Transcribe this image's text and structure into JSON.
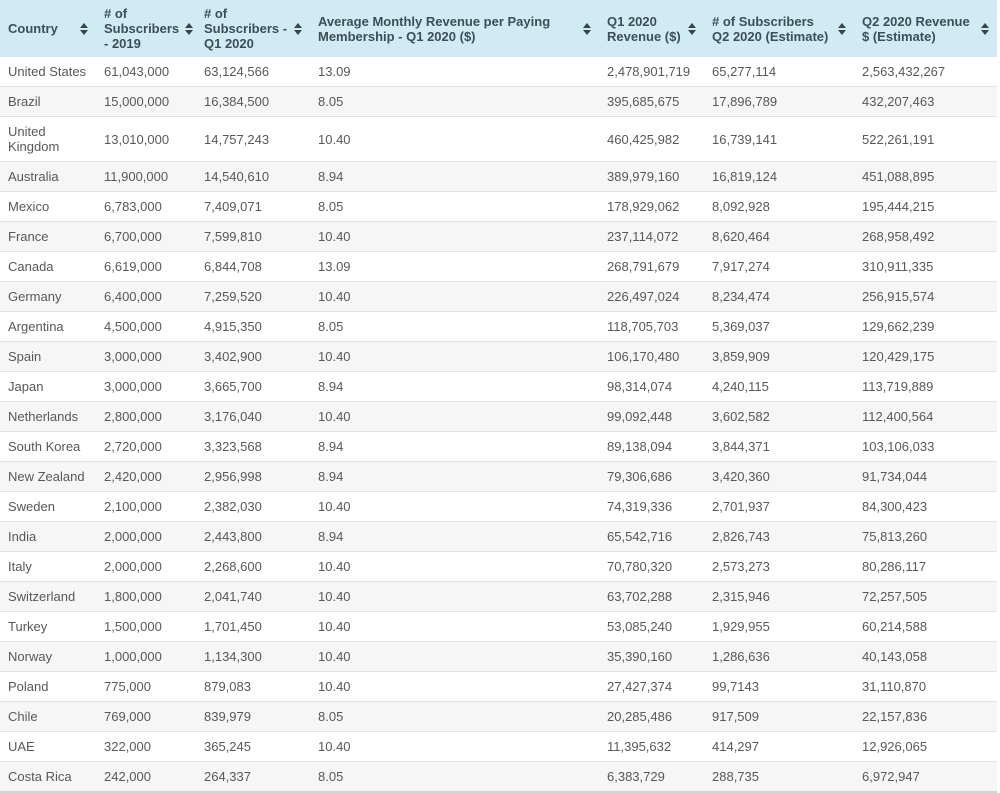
{
  "colors": {
    "page_bg": "#ffffff",
    "header_bg": "#d1ebf5",
    "header_text": "#3c4e57",
    "body_text": "#585858",
    "stripe_bg": "#f6f6f6",
    "row_border": "#e2e2e2",
    "table_bottom_border": "#d4d4d4",
    "sort_icon": "#37444c"
  },
  "table": {
    "sort_icon_name": "sort-up-down-icon",
    "columns": [
      {
        "key": "country",
        "label": "Country"
      },
      {
        "key": "subs-2019",
        "label": "# of Subscribers - 2019"
      },
      {
        "key": "subs-q1-2020",
        "label": "# of Subscribers - Q1 2020"
      },
      {
        "key": "avg-monthly-revenue-q1-2020",
        "label": "Average Monthly Revenue per Paying Membership - Q1 2020 ($)"
      },
      {
        "key": "q1-2020-revenue",
        "label": "Q1 2020 Revenue ($)"
      },
      {
        "key": "subs-q2-2020-estimate",
        "label": "# of Subscribers Q2 2020 (Estimate)"
      },
      {
        "key": "q2-2020-revenue-estimate",
        "label": "Q2 2020 Revenue $ (Estimate)"
      }
    ],
    "rows": [
      [
        "United States",
        "61,043,000",
        "63,124,566",
        "13.09",
        "2,478,901,719",
        "65,277,114",
        "2,563,432,267"
      ],
      [
        "Brazil",
        "15,000,000",
        "16,384,500",
        "8.05",
        "395,685,675",
        "17,896,789",
        "432,207,463"
      ],
      [
        "United Kingdom",
        "13,010,000",
        "14,757,243",
        "10.40",
        "460,425,982",
        "16,739,141",
        "522,261,191"
      ],
      [
        "Australia",
        "11,900,000",
        "14,540,610",
        "8.94",
        "389,979,160",
        "16,819,124",
        "451,088,895"
      ],
      [
        "Mexico",
        "6,783,000",
        "7,409,071",
        "8.05",
        "178,929,062",
        "8,092,928",
        "195,444,215"
      ],
      [
        "France",
        "6,700,000",
        "7,599,810",
        "10.40",
        "237,114,072",
        "8,620,464",
        "268,958,492"
      ],
      [
        "Canada",
        "6,619,000",
        "6,844,708",
        "13.09",
        "268,791,679",
        "7,917,274",
        "310,911,335"
      ],
      [
        "Germany",
        "6,400,000",
        "7,259,520",
        "10.40",
        "226,497,024",
        "8,234,474",
        "256,915,574"
      ],
      [
        "Argentina",
        "4,500,000",
        "4,915,350",
        "8.05",
        "118,705,703",
        "5,369,037",
        "129,662,239"
      ],
      [
        "Spain",
        "3,000,000",
        "3,402,900",
        "10.40",
        "106,170,480",
        "3,859,909",
        "120,429,175"
      ],
      [
        "Japan",
        "3,000,000",
        "3,665,700",
        "8.94",
        "98,314,074",
        "4,240,115",
        "113,719,889"
      ],
      [
        "Netherlands",
        "2,800,000",
        "3,176,040",
        "10.40",
        "99,092,448",
        "3,602,582",
        "112,400,564"
      ],
      [
        "South Korea",
        "2,720,000",
        "3,323,568",
        "8.94",
        "89,138,094",
        "3,844,371",
        "103,106,033"
      ],
      [
        "New Zealand",
        "2,420,000",
        "2,956,998",
        "8.94",
        "79,306,686",
        "3,420,360",
        "91,734,044"
      ],
      [
        "Sweden",
        "2,100,000",
        "2,382,030",
        "10.40",
        "74,319,336",
        "2,701,937",
        "84,300,423"
      ],
      [
        "India",
        "2,000,000",
        "2,443,800",
        "8.94",
        "65,542,716",
        "2,826,743",
        "75,813,260"
      ],
      [
        "Italy",
        "2,000,000",
        "2,268,600",
        "10.40",
        "70,780,320",
        "2,573,273",
        "80,286,117"
      ],
      [
        "Switzerland",
        "1,800,000",
        "2,041,740",
        "10.40",
        "63,702,288",
        "2,315,946",
        "72,257,505"
      ],
      [
        "Turkey",
        "1,500,000",
        "1,701,450",
        "10.40",
        "53,085,240",
        "1,929,955",
        "60,214,588"
      ],
      [
        "Norway",
        "1,000,000",
        "1,134,300",
        "10.40",
        "35,390,160",
        "1,286,636",
        "40,143,058"
      ],
      [
        "Poland",
        "775,000",
        "879,083",
        "10.40",
        "27,427,374",
        "99,7143",
        "31,110,870"
      ],
      [
        "Chile",
        "769,000",
        "839,979",
        "8.05",
        "20,285,486",
        "917,509",
        "22,157,836"
      ],
      [
        "UAE",
        "322,000",
        "365,245",
        "10.40",
        "11,395,632",
        "414,297",
        "12,926,065"
      ],
      [
        "Costa Rica",
        "242,000",
        "264,337",
        "8.05",
        "6,383,729",
        "288,735",
        "6,972,947"
      ]
    ]
  }
}
